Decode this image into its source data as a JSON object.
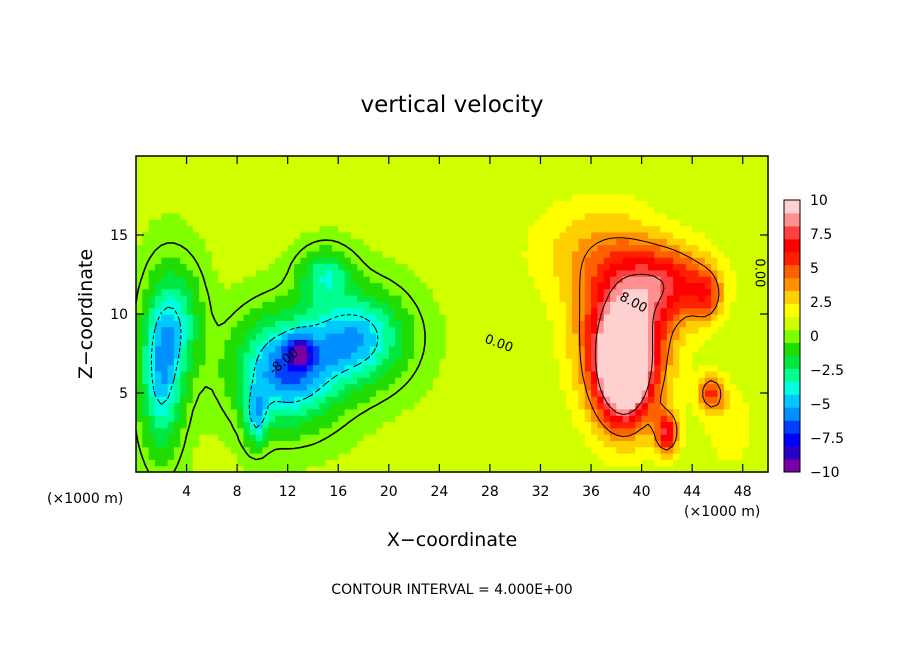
{
  "chart_data": {
    "type": "heatmap",
    "title": "vertical velocity",
    "xlabel": "X−coordinate",
    "ylabel": "Z−coordinate",
    "x_unit_left": "(×1000 m)",
    "x_unit_right": "(×1000 m)",
    "footer": "CONTOUR INTERVAL = 4.000E+00",
    "xlim": [
      0,
      50
    ],
    "ylim": [
      0,
      20
    ],
    "x_ticks": [
      4,
      8,
      12,
      16,
      20,
      24,
      28,
      32,
      36,
      40,
      44,
      48
    ],
    "x_tick_labels": [
      "4",
      "8",
      "12",
      "16",
      "20",
      "24",
      "28",
      "32",
      "36",
      "40",
      "44",
      "48"
    ],
    "y_ticks": [
      5,
      10,
      15
    ],
    "y_tick_labels": [
      "5",
      "10",
      "15"
    ],
    "colorbar": {
      "range": [
        -10,
        10
      ],
      "ticks": [
        10,
        7.5,
        5,
        2.5,
        0,
        -2.5,
        -5,
        -7.5,
        -10
      ],
      "tick_labels": [
        "10",
        "7.5",
        "5",
        "2.5",
        "0",
        "−2.5",
        "−5",
        "−7.5",
        "−10"
      ],
      "colors": [
        "#7a00a6",
        "#2a00c8",
        "#0000ff",
        "#0040ff",
        "#0090ff",
        "#00c8ff",
        "#00ffe0",
        "#00ff90",
        "#00e840",
        "#20dc00",
        "#80ff00",
        "#d0ff00",
        "#ffff00",
        "#ffd000",
        "#ff9000",
        "#ff6000",
        "#ff2000",
        "#ff0000",
        "#ff4040",
        "#ff9090",
        "#ffd0d0"
      ]
    },
    "contour_labels": [
      {
        "text": "0.00",
        "x": 28.6,
        "z": 7.9,
        "rotate": 20
      },
      {
        "text": "8.00",
        "x": 39.2,
        "z": 10.5,
        "rotate": 28
      },
      {
        "text": "0.00",
        "x": 49.0,
        "z": 12.6,
        "rotate": 90
      },
      {
        "text": "-8.00",
        "x": 11.9,
        "z": 6.8,
        "rotate": -40
      }
    ],
    "features": [
      {
        "x": 2.0,
        "z": 6.5,
        "w": -5.5,
        "sx": 1.6,
        "sz": 4.8
      },
      {
        "x": 3.5,
        "z": 9.5,
        "w": -3.0,
        "sx": 1.8,
        "sz": 3.5
      },
      {
        "x": 12.0,
        "z": 6.5,
        "w": -7.0,
        "sx": 3.8,
        "sz": 3.2
      },
      {
        "x": 17.5,
        "z": 8.5,
        "w": -5.5,
        "sx": 3.6,
        "sz": 2.8
      },
      {
        "x": 13.0,
        "z": 7.6,
        "w": -4.5,
        "sx": 0.9,
        "sz": 0.9
      },
      {
        "x": 15.0,
        "z": 12.5,
        "w": -3.5,
        "sx": 2.0,
        "sz": 1.6
      },
      {
        "x": 9.5,
        "z": 3.5,
        "w": -4.0,
        "sx": 0.9,
        "sz": 1.8
      },
      {
        "x": 38.6,
        "z": 8.5,
        "w": 7.5,
        "sx": 3.6,
        "sz": 5.2
      },
      {
        "x": 38.6,
        "z": 6.5,
        "w": 9.5,
        "sx": 2.0,
        "sz": 3.2
      },
      {
        "x": 42.5,
        "z": 12.0,
        "w": 5.0,
        "sx": 3.6,
        "sz": 2.4
      },
      {
        "x": 45.2,
        "z": 11.0,
        "w": 3.0,
        "sx": 1.2,
        "sz": 1.6
      },
      {
        "x": 45.5,
        "z": 5.0,
        "w": 4.5,
        "sx": 1.0,
        "sz": 1.2
      },
      {
        "x": 42.0,
        "z": 2.5,
        "w": 6.0,
        "sx": 0.9,
        "sz": 1.3
      },
      {
        "x": 35.5,
        "z": 14.0,
        "w": 2.0,
        "sx": 5.0,
        "sz": 3.5
      },
      {
        "x": 47.0,
        "z": 3.0,
        "w": 1.5,
        "sx": 2.0,
        "sz": 3.0
      }
    ]
  }
}
